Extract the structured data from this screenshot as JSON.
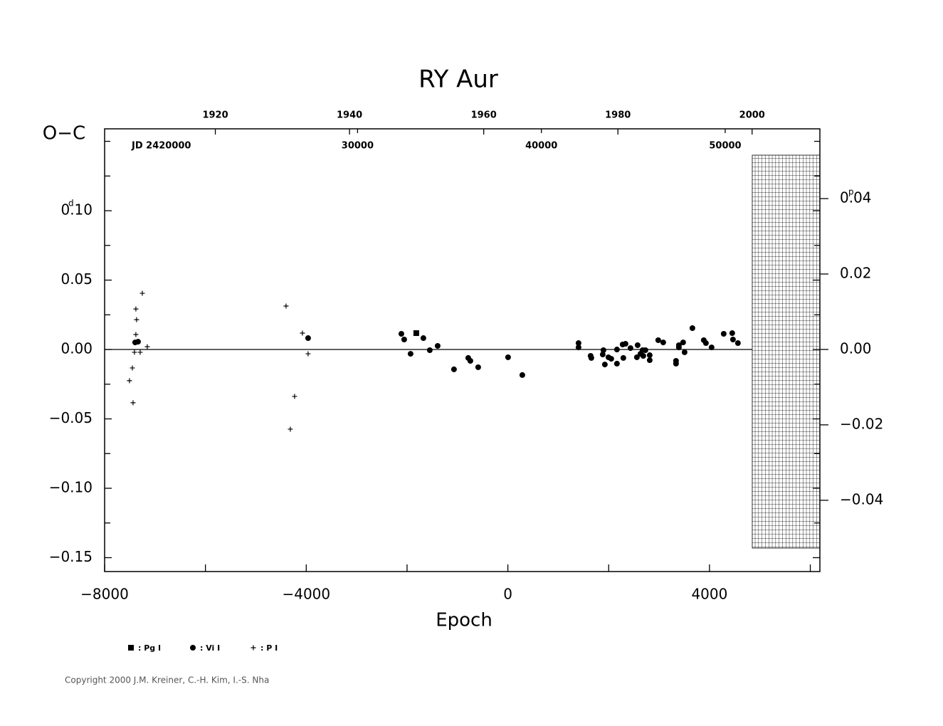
{
  "chart_data": {
    "type": "scatter",
    "title": "RY Aur",
    "y_label": "O−C",
    "x_label": "Epoch",
    "y_unit": "d",
    "y2_unit": "p",
    "jd_label": "JD 2420000",
    "copyright": "Copyright 2000 J.M. Kreiner, C.-H. Kim, I.-S. Nha",
    "xlim": [
      -8000,
      6190
    ],
    "xticks": [
      {
        "value": -8000,
        "label": "−8000"
      },
      {
        "value": -4000,
        "label": "−4000"
      },
      0,
      4000
    ],
    "xminor": [
      -6000,
      -2000,
      2000,
      6000
    ],
    "ylim": [
      -0.16,
      0.159
    ],
    "yticks": [
      {
        "value": 0.1,
        "label": "0.10"
      },
      0.05,
      {
        "value": 0,
        "label": "0.00"
      },
      {
        "value": -0.05,
        "label": "−0.05"
      },
      {
        "value": -0.1,
        "label": "−0.10"
      },
      {
        "value": -0.15,
        "label": "−0.15"
      }
    ],
    "yminor": [
      0.15,
      0.125,
      0.075,
      0.025,
      -0.025,
      -0.075,
      -0.125
    ],
    "y2lim": [
      -0.0589,
      0.0585
    ],
    "y2ticks": [
      0.04,
      0.02,
      {
        "value": 0,
        "label": "0.00"
      },
      {
        "value": -0.02,
        "label": "−0.02"
      },
      {
        "value": -0.04,
        "label": "−0.04"
      }
    ],
    "year_lim": [
      1903.5,
      2010.1
    ],
    "year_ticks": [
      1920,
      1940,
      1960,
      1980,
      2000
    ],
    "jd_lim": [
      16240,
      55150
    ],
    "jd_ticks": [
      30000,
      40000,
      50000
    ],
    "series": [
      {
        "name": ": Pg I",
        "marker": "square",
        "color": "#000",
        "x": [
          -1817
        ],
        "values": [
          0.0118
        ]
      },
      {
        "name": ": Vi I",
        "marker": "circle",
        "color": "#000",
        "x": [
          -7394,
          -7337,
          -3963,
          -2113,
          -2057,
          -1930,
          -1676,
          -1549,
          -1393,
          -1069,
          -786,
          -744,
          -589,
          4,
          287,
          1402,
          1402,
          1642,
          1656,
          1882,
          1896,
          1924,
          1995,
          2051,
          2164,
          2164,
          2277,
          2291,
          2334,
          2433,
          2560,
          2574,
          2630,
          2673,
          2687,
          2729,
          2814,
          2814,
          2983,
          3082,
          3336,
          3336,
          3393,
          3393,
          3477,
          3506,
          3661,
          3887,
          3929,
          4042,
          4282,
          4451,
          4466,
          4564
        ],
        "values": [
          0.0051,
          0.0056,
          0.0082,
          0.0113,
          0.0072,
          -0.0031,
          0.0082,
          -0.0005,
          0.0026,
          -0.0143,
          -0.0061,
          -0.0082,
          -0.0128,
          -0.0056,
          -0.0184,
          0.0046,
          0.0015,
          -0.0046,
          -0.0061,
          -0.0036,
          -0.0005,
          -0.0108,
          -0.0056,
          -0.0067,
          0,
          -0.0102,
          0.0036,
          -0.0061,
          0.0041,
          0.001,
          -0.0056,
          0.0031,
          -0.0031,
          -0.0005,
          -0.0046,
          -0.0005,
          -0.0041,
          -0.0077,
          0.0067,
          0.0051,
          -0.0082,
          -0.0102,
          0.0031,
          0.0015,
          0.0051,
          -0.002,
          0.0154,
          0.0067,
          0.0046,
          0.0015,
          0.0113,
          0.0118,
          0.0072,
          0.0046
        ]
      },
      {
        "name": ": P I",
        "marker": "plus",
        "color": "#000",
        "x": [
          -7252,
          -7380,
          -7366,
          -7380,
          -7408,
          -7295,
          -7450,
          -7507,
          -7436,
          -7154,
          -4401,
          -4076,
          -4231,
          -4316,
          -3963
        ],
        "values": [
          0.0405,
          0.0292,
          0.0215,
          0.0108,
          -0.002,
          -0.002,
          -0.0133,
          -0.0225,
          -0.0384,
          0.002,
          0.0313,
          0.0118,
          -0.0338,
          -0.0574,
          -0.0031
        ]
      }
    ]
  }
}
